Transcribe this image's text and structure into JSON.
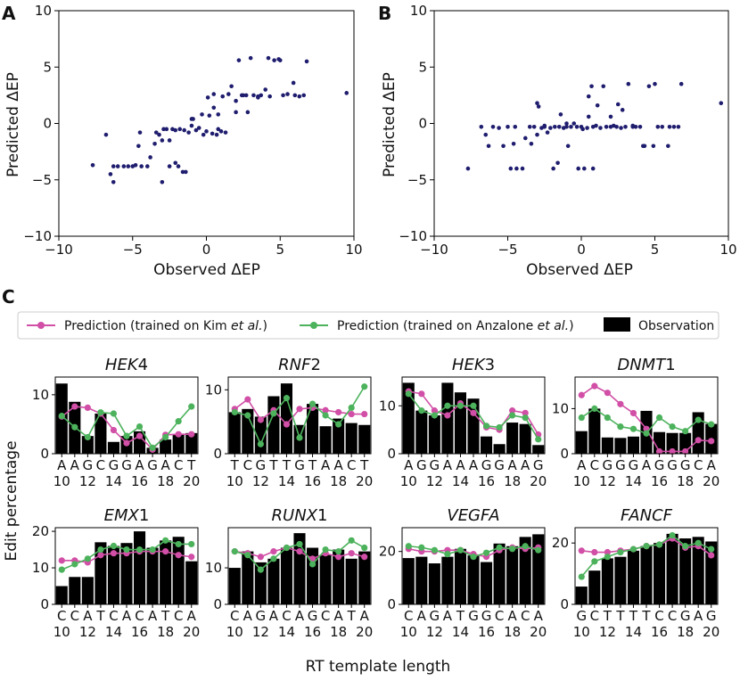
{
  "figure": {
    "panel_labels": [
      "A",
      "B",
      "C"
    ],
    "legend": {
      "kim": {
        "prefix": "Prediction (trained on Kim ",
        "italic": "et al.",
        "suffix": ")"
      },
      "anzalone": {
        "prefix": "Prediction (trained on Anzalone ",
        "italic": "et al.",
        "suffix": ")"
      },
      "observation": "Observation"
    },
    "y_label_c": "Edit percentage",
    "x_label_c": "RT template length",
    "colors": {
      "kim": "#d14fa6",
      "anzalone": "#4cb25c",
      "bars": "#000000",
      "points": "#1f1d6e"
    }
  },
  "chart_data": [
    {
      "panel": "A",
      "type": "scatter",
      "xlabel": "Observed ΔEP",
      "ylabel": "Predicted ΔEP",
      "xlim": [
        -10,
        10
      ],
      "ylim": [
        -10,
        10
      ],
      "xticks": [
        -10,
        -5,
        0,
        5,
        10
      ],
      "yticks": [
        -10,
        -5,
        0,
        5,
        10
      ],
      "x": [
        -7.7,
        -6.8,
        -6.5,
        -6.3,
        -6.0,
        -5.6,
        -5.3,
        -5.0,
        -4.8,
        -4.6,
        -4.4,
        -4.0,
        -3.8,
        -3.5,
        -3.4,
        -3.2,
        -3.0,
        -2.9,
        -2.7,
        -2.5,
        -2.3,
        -2.1,
        -1.9,
        -1.8,
        -1.6,
        -1.4,
        -1.2,
        -1.0,
        -0.9,
        -0.7,
        -0.5,
        -0.3,
        -0.2,
        0.0,
        0.1,
        0.2,
        0.4,
        0.5,
        0.7,
        0.8,
        1.0,
        1.1,
        1.3,
        1.5,
        1.7,
        2.0,
        2.2,
        2.4,
        2.5,
        2.7,
        3.0,
        3.2,
        3.5,
        3.7,
        4.0,
        4.3,
        4.6,
        4.9,
        5.2,
        5.5,
        5.9,
        6.3,
        6.8,
        9.5,
        -3.0,
        -2.5,
        -1.0,
        0.5,
        2.0,
        3.5,
        4.2,
        5.0,
        6.0,
        6.6,
        -4.5,
        -1.5,
        0.8,
        2.8,
        -6.3,
        -2.1
      ],
      "y": [
        -3.7,
        -1.0,
        -4.5,
        -3.8,
        -3.8,
        -3.8,
        -3.8,
        -3.8,
        -3.7,
        -2.0,
        -3.8,
        -3.8,
        -3.0,
        -1.8,
        -0.8,
        -1.0,
        -1.5,
        -0.5,
        -0.5,
        -3.8,
        -0.5,
        -0.6,
        -3.8,
        -0.5,
        -4.3,
        -4.3,
        -0.8,
        0.4,
        0.4,
        -0.6,
        -0.4,
        0.8,
        -1.0,
        -0.7,
        2.3,
        0.7,
        -0.9,
        1.4,
        -1.0,
        0.8,
        -0.7,
        2.4,
        -0.8,
        2.6,
        3.3,
        1.0,
        5.6,
        2.5,
        2.5,
        2.5,
        5.8,
        2.5,
        2.3,
        2.5,
        3.0,
        2.4,
        5.6,
        5.7,
        2.5,
        2.6,
        3.6,
        2.4,
        5.5,
        2.7,
        -5.2,
        -1.5,
        -0.2,
        2.6,
        2.0,
        2.4,
        5.8,
        5.6,
        2.5,
        2.5,
        -0.8,
        -0.6,
        -0.5,
        1.0,
        -5.2,
        -3.5
      ]
    },
    {
      "panel": "B",
      "type": "scatter",
      "xlabel": "Observed ΔEP",
      "ylabel": "Predicted ΔEP",
      "xlim": [
        -10,
        10
      ],
      "ylim": [
        -10,
        10
      ],
      "xticks": [
        -10,
        -5,
        0,
        5,
        10
      ],
      "yticks": [
        -10,
        -5,
        0,
        5,
        10
      ],
      "x": [
        -7.7,
        -6.8,
        -6.5,
        -6.3,
        -6.0,
        -5.6,
        -5.3,
        -5.0,
        -4.8,
        -4.6,
        -4.4,
        -4.0,
        -3.8,
        -3.5,
        -3.4,
        -3.2,
        -3.0,
        -2.9,
        -2.7,
        -2.5,
        -2.3,
        -2.1,
        -1.9,
        -1.8,
        -1.6,
        -1.4,
        -1.2,
        -1.0,
        -0.9,
        -0.7,
        -0.5,
        -0.3,
        -0.2,
        0.0,
        0.1,
        0.2,
        0.4,
        0.5,
        0.7,
        0.8,
        1.0,
        1.1,
        1.3,
        1.5,
        1.7,
        2.0,
        2.2,
        2.4,
        2.5,
        2.7,
        3.0,
        3.2,
        3.5,
        3.7,
        4.0,
        4.3,
        4.6,
        4.9,
        5.2,
        5.5,
        5.9,
        6.3,
        6.8,
        9.5,
        -3.0,
        -2.5,
        -1.0,
        0.5,
        2.0,
        3.5,
        4.2,
        5.0,
        6.0,
        6.6,
        -4.5,
        -1.5,
        0.8,
        2.8
      ],
      "y": [
        -4.0,
        -0.3,
        -1.0,
        -2.0,
        -0.3,
        -0.4,
        -2.0,
        -0.3,
        -4.0,
        -1.8,
        -4.0,
        -4.0,
        -1.3,
        -0.3,
        -1.8,
        -0.3,
        -1.0,
        1.5,
        -0.4,
        -0.3,
        -0.8,
        -0.4,
        -4.0,
        -0.3,
        -3.5,
        0.8,
        -0.4,
        0.0,
        -2.0,
        -0.3,
        0.0,
        -0.3,
        -4.0,
        -0.3,
        -0.5,
        -4.0,
        -0.4,
        0.6,
        3.3,
        -4.0,
        -0.2,
        1.6,
        -0.4,
        3.3,
        -0.3,
        -0.3,
        -0.2,
        -0.3,
        1.7,
        -0.4,
        -0.3,
        3.5,
        -0.3,
        -0.3,
        -0.3,
        -2.0,
        3.3,
        -2.0,
        -0.3,
        -0.3,
        -2.0,
        -0.3,
        3.5,
        1.8,
        1.8,
        -0.2,
        -0.3,
        2.4,
        0.6,
        -0.2,
        -2.0,
        3.5,
        -0.3,
        -0.3,
        -0.3,
        -0.3,
        -0.3,
        1.2
      ]
    },
    {
      "panel": "C",
      "type": "bar",
      "gene": "HEK4",
      "gene_italic": "HEK",
      "gene_rest": "4",
      "sequence": [
        "A",
        "A",
        "G",
        "C",
        "G",
        "G",
        "A",
        "G",
        "A",
        "C",
        "T"
      ],
      "x": [
        10,
        11,
        12,
        13,
        14,
        15,
        16,
        17,
        18,
        19,
        20
      ],
      "xticks": [
        "10",
        "12",
        "14",
        "16",
        "18",
        "20"
      ],
      "ylim": [
        0,
        13
      ],
      "yticks": [
        0,
        10
      ],
      "observation": [
        11.9,
        8.8,
        3.0,
        6.8,
        2.0,
        3.0,
        3.8,
        1.0,
        2.4,
        3.2,
        3.5
      ],
      "kim": [
        6.3,
        8.0,
        7.8,
        6.8,
        4.0,
        1.8,
        3.0,
        0.7,
        3.2,
        3.3,
        3.3
      ],
      "anzalone": [
        6.4,
        4.5,
        2.8,
        7.0,
        6.8,
        3.0,
        4.6,
        1.0,
        2.8,
        5.5,
        8.0
      ]
    },
    {
      "panel": "C",
      "type": "bar",
      "gene": "RNF2",
      "gene_italic": "RNF",
      "gene_rest": "2",
      "sequence": [
        "T",
        "C",
        "G",
        "T",
        "T",
        "G",
        "T",
        "A",
        "A",
        "C",
        "T"
      ],
      "x": [
        10,
        11,
        12,
        13,
        14,
        15,
        16,
        17,
        18,
        19,
        20
      ],
      "xticks": [
        "10",
        "12",
        "14",
        "16",
        "18",
        "20"
      ],
      "ylim": [
        0,
        12
      ],
      "yticks": [
        0,
        10
      ],
      "observation": [
        6.5,
        7.0,
        5.8,
        9.0,
        11.0,
        4.5,
        7.8,
        4.3,
        5.5,
        4.8,
        4.5
      ],
      "kim": [
        7.0,
        8.5,
        5.3,
        6.8,
        4.6,
        7.0,
        7.2,
        6.8,
        6.5,
        6.2,
        6.2
      ],
      "anzalone": [
        6.5,
        6.0,
        1.5,
        6.3,
        8.7,
        2.5,
        7.8,
        6.0,
        4.6,
        7.2,
        10.5
      ]
    },
    {
      "panel": "C",
      "type": "bar",
      "gene": "HEK3",
      "gene_italic": "HEK",
      "gene_rest": "3",
      "sequence": [
        "A",
        "G",
        "G",
        "A",
        "A",
        "A",
        "G",
        "G",
        "A",
        "A",
        "G"
      ],
      "x": [
        10,
        11,
        12,
        13,
        14,
        15,
        16,
        17,
        18,
        19,
        20
      ],
      "xticks": [
        "10",
        "12",
        "14",
        "16",
        "18",
        "20"
      ],
      "ylim": [
        0,
        16
      ],
      "yticks": [
        0,
        10
      ],
      "observation": [
        14.8,
        9.0,
        8.0,
        14.8,
        12.8,
        11.5,
        3.6,
        2.0,
        6.5,
        6.2,
        1.8
      ],
      "kim": [
        13.0,
        12.5,
        9.0,
        8.0,
        10.5,
        8.5,
        5.5,
        5.0,
        9.0,
        8.5,
        4.0
      ],
      "anzalone": [
        12.5,
        9.0,
        8.0,
        10.0,
        10.0,
        10.0,
        5.8,
        5.5,
        8.0,
        7.5,
        3.0
      ]
    },
    {
      "panel": "C",
      "type": "bar",
      "gene": "DNMT1",
      "gene_italic": "DNMT",
      "gene_rest": "1",
      "sequence": [
        "A",
        "C",
        "G",
        "G",
        "G",
        "A",
        "G",
        "G",
        "G",
        "C",
        "A"
      ],
      "x": [
        10,
        11,
        12,
        13,
        14,
        15,
        16,
        17,
        18,
        19,
        20
      ],
      "xticks": [
        "10",
        "12",
        "14",
        "16",
        "18",
        "20"
      ],
      "ylim": [
        0,
        17
      ],
      "yticks": [
        0,
        10
      ],
      "observation": [
        5.0,
        10.0,
        3.6,
        3.5,
        3.8,
        9.5,
        4.8,
        4.6,
        4.6,
        9.2,
        6.6
      ],
      "kim": [
        13.0,
        15.0,
        13.5,
        11.0,
        9.0,
        5.5,
        0.5,
        0.5,
        0.5,
        3.0,
        2.8
      ],
      "anzalone": [
        8.0,
        10.0,
        8.0,
        6.0,
        5.5,
        4.5,
        8.0,
        6.0,
        5.0,
        7.5,
        6.5
      ]
    },
    {
      "panel": "C",
      "type": "bar",
      "gene": "EMX1",
      "gene_italic": "EMX",
      "gene_rest": "1",
      "sequence": [
        "C",
        "C",
        "A",
        "T",
        "C",
        "A",
        "C",
        "A",
        "T",
        "C",
        "A"
      ],
      "x": [
        10,
        11,
        12,
        13,
        14,
        15,
        16,
        17,
        18,
        19,
        20
      ],
      "xticks": [
        "10",
        "12",
        "14",
        "16",
        "18",
        "20"
      ],
      "ylim": [
        0,
        21
      ],
      "yticks": [
        0,
        10,
        20
      ],
      "observation": [
        5.0,
        7.5,
        7.5,
        17.0,
        16.0,
        16.8,
        20.0,
        15.5,
        17.5,
        18.5,
        11.8
      ],
      "kim": [
        12.0,
        12.0,
        11.5,
        13.5,
        14.0,
        14.0,
        14.5,
        14.5,
        14.5,
        13.5,
        13.0
      ],
      "anzalone": [
        9.5,
        11.0,
        12.5,
        15.0,
        16.0,
        15.0,
        15.0,
        15.0,
        17.5,
        16.5,
        16.5
      ]
    },
    {
      "panel": "C",
      "type": "bar",
      "gene": "RUNX1",
      "gene_italic": "RUNX",
      "gene_rest": "1",
      "sequence": [
        "C",
        "A",
        "G",
        "A",
        "C",
        "A",
        "G",
        "C",
        "A",
        "T",
        "A"
      ],
      "x": [
        10,
        11,
        12,
        13,
        14,
        15,
        16,
        17,
        18,
        19,
        20
      ],
      "xticks": [
        "10",
        "12",
        "14",
        "16",
        "18",
        "20"
      ],
      "ylim": [
        0,
        21
      ],
      "yticks": [
        0,
        10
      ],
      "observation": [
        10.0,
        14.5,
        11.5,
        12.5,
        15.5,
        19.5,
        15.5,
        13.5,
        15.0,
        12.5,
        14.5
      ],
      "kim": [
        14.5,
        14.0,
        13.0,
        14.5,
        15.5,
        14.5,
        12.5,
        14.0,
        13.0,
        14.0,
        13.0
      ],
      "anzalone": [
        14.5,
        13.5,
        9.5,
        12.5,
        15.5,
        16.5,
        11.0,
        15.0,
        14.5,
        17.5,
        15.5
      ]
    },
    {
      "panel": "C",
      "type": "bar",
      "gene": "VEGFA",
      "gene_italic": "VEGFA",
      "gene_rest": "",
      "sequence": [
        "C",
        "A",
        "G",
        "A",
        "T",
        "G",
        "G",
        "C",
        "A",
        "C",
        "A"
      ],
      "x": [
        10,
        11,
        12,
        13,
        14,
        15,
        16,
        17,
        18,
        19,
        20
      ],
      "xticks": [
        "10",
        "12",
        "14",
        "16",
        "18",
        "20"
      ],
      "ylim": [
        0,
        29
      ],
      "yticks": [
        0,
        20
      ],
      "observation": [
        17.5,
        18.0,
        15.5,
        18.0,
        21.0,
        18.5,
        16.0,
        23.0,
        22.0,
        25.5,
        26.5
      ],
      "kim": [
        21.0,
        20.0,
        20.0,
        20.5,
        20.5,
        19.0,
        18.0,
        20.5,
        21.5,
        21.0,
        21.5
      ],
      "anzalone": [
        22.0,
        21.5,
        20.5,
        19.0,
        20.5,
        18.0,
        19.5,
        21.5,
        21.0,
        22.0,
        20.5
      ]
    },
    {
      "panel": "C",
      "type": "bar",
      "gene": "FANCF",
      "gene_italic": "FANCF",
      "gene_rest": "",
      "sequence": [
        "G",
        "C",
        "T",
        "T",
        "T",
        "T",
        "C",
        "C",
        "G",
        "A",
        "G"
      ],
      "x": [
        10,
        11,
        12,
        13,
        14,
        15,
        16,
        17,
        18,
        19,
        20
      ],
      "xticks": [
        "10",
        "12",
        "14",
        "16",
        "18",
        "20"
      ],
      "ylim": [
        0,
        25
      ],
      "yticks": [
        0,
        20
      ],
      "observation": [
        5.8,
        11.0,
        15.0,
        15.5,
        17.5,
        19.0,
        20.0,
        23.0,
        21.5,
        22.0,
        20.5
      ],
      "kim": [
        17.5,
        17.0,
        17.0,
        17.5,
        18.0,
        19.0,
        19.5,
        21.5,
        18.5,
        19.0,
        16.0
      ],
      "anzalone": [
        9.0,
        14.0,
        15.5,
        17.0,
        18.0,
        19.0,
        19.5,
        22.5,
        19.0,
        20.0,
        18.0
      ]
    }
  ]
}
